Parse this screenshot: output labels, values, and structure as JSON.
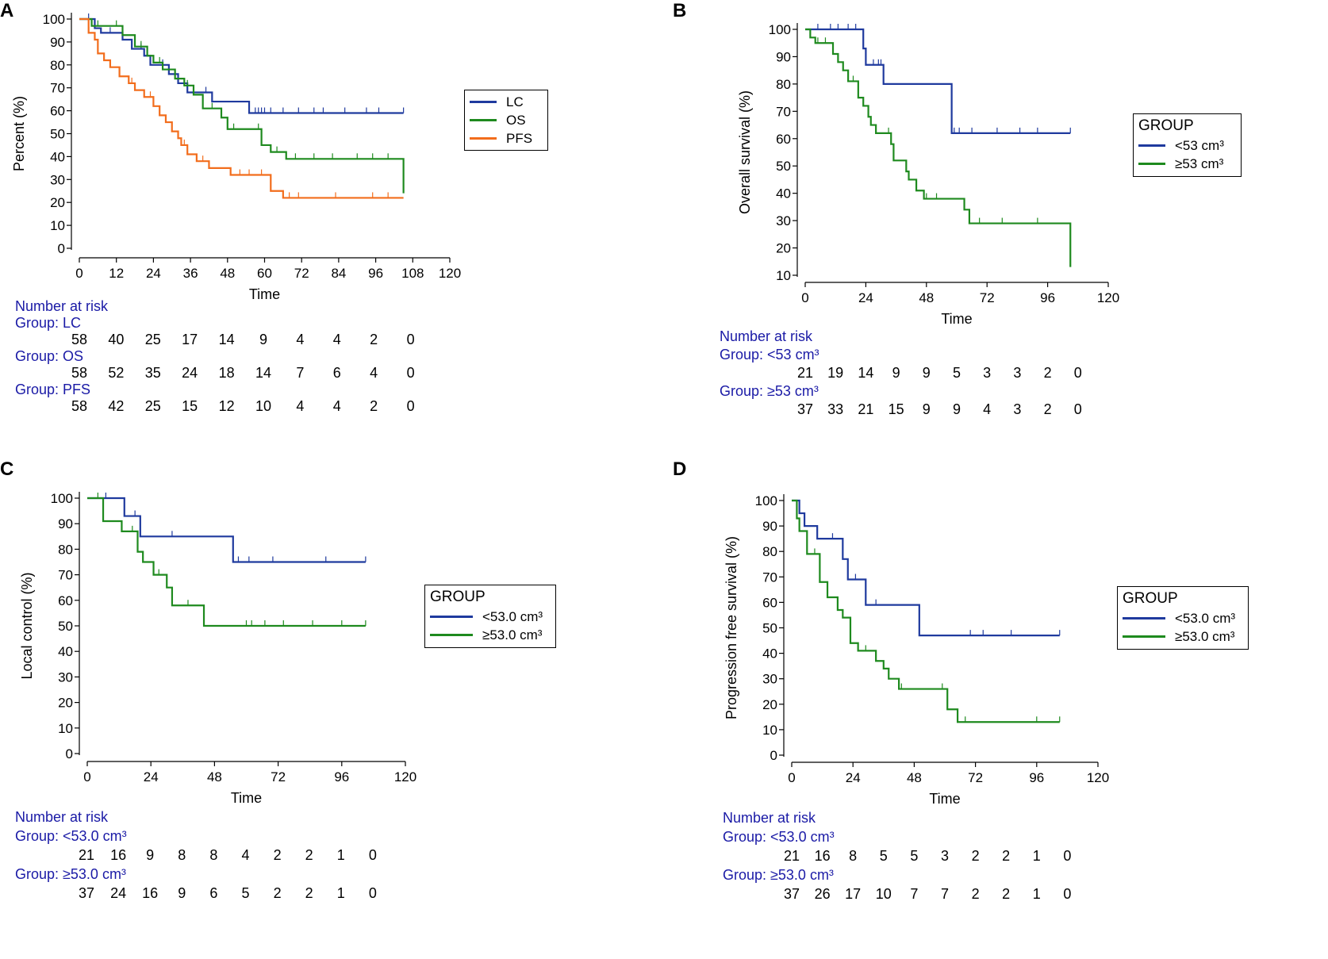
{
  "colors": {
    "blue": "#1f3a9e",
    "green": "#1e8a1e",
    "orange": "#f26d1c",
    "risk_text": "#1a1aa6"
  },
  "chart_data": [
    {
      "panel": "A",
      "type": "line",
      "step": true,
      "xlabel": "Time",
      "ylabel": "Percent (%)",
      "xlim": [
        0,
        120
      ],
      "ylim": [
        0,
        100
      ],
      "xticks": [
        "0",
        "12",
        "24",
        "36",
        "48",
        "60",
        "72",
        "84",
        "96",
        "108",
        "120"
      ],
      "yticks": [
        "0",
        "10",
        "20",
        "30",
        "40",
        "50",
        "60",
        "70",
        "80",
        "90",
        "100"
      ],
      "legend": {
        "title": "",
        "position": "right",
        "entries": [
          {
            "name": "LC",
            "color": "#1f3a9e"
          },
          {
            "name": "OS",
            "color": "#1e8a1e"
          },
          {
            "name": "PFS",
            "color": "#f26d1c"
          }
        ]
      },
      "series": [
        {
          "name": "LC",
          "color": "#1f3a9e",
          "x": [
            0,
            5,
            7,
            14,
            17,
            21,
            23,
            29,
            32,
            35,
            43,
            55,
            105
          ],
          "y": [
            100,
            96,
            94,
            91,
            87,
            84,
            80,
            76,
            72,
            68,
            64,
            59,
            59
          ],
          "censor": [
            3,
            10,
            20,
            27,
            37,
            41,
            57,
            58,
            59,
            60,
            62,
            66,
            71,
            76,
            79,
            86,
            93,
            97,
            105
          ]
        },
        {
          "name": "OS",
          "color": "#1e8a1e",
          "x": [
            0,
            4,
            14,
            18,
            22,
            24,
            27,
            31,
            34,
            37,
            40,
            46,
            48,
            59,
            62,
            67,
            105,
            105
          ],
          "y": [
            100,
            97,
            93,
            88,
            84,
            81,
            78,
            74,
            71,
            67,
            61,
            57,
            52,
            45,
            42,
            39,
            39,
            24
          ],
          "censor": [
            6,
            12,
            20,
            26,
            35,
            43,
            50,
            58,
            64,
            70,
            76,
            82,
            90,
            95,
            100
          ]
        },
        {
          "name": "PFS",
          "color": "#f26d1c",
          "x": [
            0,
            3,
            5,
            6,
            8,
            10,
            13,
            16,
            18,
            21,
            24,
            26,
            28,
            30,
            32,
            33,
            35,
            38,
            42,
            49,
            56,
            62,
            66,
            105
          ],
          "y": [
            100,
            94,
            91,
            85,
            82,
            79,
            75,
            72,
            69,
            66,
            62,
            58,
            55,
            51,
            48,
            45,
            41,
            38,
            35,
            32,
            32,
            25,
            22,
            22
          ],
          "censor": [
            17,
            23,
            34,
            40,
            52,
            55,
            59,
            68,
            71,
            83,
            95,
            100
          ]
        }
      ],
      "risk_table": {
        "title": "Number at risk",
        "times": [
          0,
          12,
          24,
          36,
          48,
          60,
          72,
          84,
          96,
          108
        ],
        "groups": [
          {
            "label": "Group: LC",
            "values": [
              "58",
              "40",
              "25",
              "17",
              "14",
              "9",
              "4",
              "4",
              "2",
              "0"
            ]
          },
          {
            "label": "Group: OS",
            "values": [
              "58",
              "52",
              "35",
              "24",
              "18",
              "14",
              "7",
              "6",
              "4",
              "0"
            ]
          },
          {
            "label": "Group: PFS",
            "values": [
              "58",
              "42",
              "25",
              "15",
              "12",
              "10",
              "4",
              "4",
              "2",
              "0"
            ]
          }
        ]
      }
    },
    {
      "panel": "B",
      "type": "line",
      "step": true,
      "xlabel": "Time",
      "ylabel": "Overall survival (%)",
      "xlim": [
        0,
        120
      ],
      "ylim": [
        10,
        100
      ],
      "xticks": [
        "0",
        "24",
        "48",
        "72",
        "96",
        "120"
      ],
      "yticks": [
        "10",
        "20",
        "30",
        "40",
        "50",
        "60",
        "70",
        "80",
        "90",
        "100"
      ],
      "legend": {
        "title": "GROUP",
        "position": "right",
        "entries": [
          {
            "name": "<53 cm³",
            "color": "#1f3a9e"
          },
          {
            "name": "≥53 cm³",
            "color": "#1e8a1e"
          }
        ]
      },
      "series": [
        {
          "name": "<53 cm³",
          "color": "#1f3a9e",
          "x": [
            0,
            23,
            24,
            31,
            58,
            105
          ],
          "y": [
            100,
            93,
            87,
            80,
            62,
            62
          ],
          "censor": [
            5,
            10,
            13,
            17,
            20,
            27,
            29,
            30,
            31,
            59,
            61,
            66,
            76,
            85,
            92,
            105
          ]
        },
        {
          "name": "≥53 cm³",
          "color": "#1e8a1e",
          "x": [
            0,
            2,
            4,
            11,
            13,
            15,
            17,
            21,
            23,
            25,
            26,
            28,
            34,
            35,
            40,
            41,
            44,
            47,
            52,
            57,
            63,
            65,
            105,
            105
          ],
          "y": [
            100,
            97,
            95,
            91,
            88,
            85,
            81,
            75,
            72,
            68,
            65,
            62,
            58,
            52,
            48,
            45,
            41,
            38,
            38,
            38,
            34,
            29,
            29,
            13
          ],
          "censor": [
            5,
            8,
            19,
            33,
            48,
            52,
            65,
            69,
            78,
            92
          ]
        }
      ],
      "risk_table": {
        "title": "Number at risk",
        "times": [
          0,
          12,
          24,
          36,
          48,
          60,
          72,
          84,
          96,
          108
        ],
        "groups": [
          {
            "label": "Group: <53 cm³",
            "values": [
              "21",
              "19",
              "14",
              "9",
              "9",
              "5",
              "3",
              "3",
              "2",
              "0"
            ]
          },
          {
            "label": "Group: ≥53 cm³",
            "values": [
              "37",
              "33",
              "21",
              "15",
              "9",
              "9",
              "4",
              "3",
              "2",
              "0"
            ]
          }
        ]
      }
    },
    {
      "panel": "C",
      "type": "line",
      "step": true,
      "xlabel": "Time",
      "ylabel": "Local control (%)",
      "xlim": [
        0,
        120
      ],
      "ylim": [
        0,
        100
      ],
      "xticks": [
        "0",
        "24",
        "48",
        "72",
        "96",
        "120"
      ],
      "yticks": [
        "0",
        "10",
        "20",
        "30",
        "40",
        "50",
        "60",
        "70",
        "80",
        "90",
        "100"
      ],
      "legend": {
        "title": "GROUP",
        "position": "right",
        "entries": [
          {
            "name": "<53.0 cm³",
            "color": "#1f3a9e"
          },
          {
            "name": "≥53.0 cm³",
            "color": "#1e8a1e"
          }
        ]
      },
      "series": [
        {
          "name": "<53.0 cm³",
          "color": "#1f3a9e",
          "x": [
            0,
            14,
            20,
            55,
            105
          ],
          "y": [
            100,
            93,
            85,
            75,
            75
          ],
          "censor": [
            7,
            18,
            32,
            57,
            61,
            70,
            90,
            105
          ]
        },
        {
          "name": "≥53.0 cm³",
          "color": "#1e8a1e",
          "x": [
            0,
            6,
            13,
            19,
            21,
            25,
            30,
            32,
            44,
            105
          ],
          "y": [
            100,
            91,
            87,
            79,
            75,
            70,
            65,
            58,
            50,
            50
          ],
          "censor": [
            4,
            17,
            27,
            38,
            60,
            62,
            67,
            74,
            85,
            96,
            105
          ]
        }
      ],
      "risk_table": {
        "title": "Number at risk",
        "times": [
          0,
          12,
          24,
          36,
          48,
          60,
          72,
          84,
          96,
          108
        ],
        "groups": [
          {
            "label": "Group: <53.0 cm³",
            "values": [
              "21",
              "16",
              "9",
              "8",
              "8",
              "4",
              "2",
              "2",
              "1",
              "0"
            ]
          },
          {
            "label": "Group: ≥53.0 cm³",
            "values": [
              "37",
              "24",
              "16",
              "9",
              "6",
              "5",
              "2",
              "2",
              "1",
              "0"
            ]
          }
        ]
      }
    },
    {
      "panel": "D",
      "type": "line",
      "step": true,
      "xlabel": "Time",
      "ylabel": "Progression  free survival (%)",
      "xlim": [
        0,
        120
      ],
      "ylim": [
        0,
        100
      ],
      "xticks": [
        "0",
        "24",
        "48",
        "72",
        "96",
        "120"
      ],
      "yticks": [
        "0",
        "10",
        "20",
        "30",
        "40",
        "50",
        "60",
        "70",
        "80",
        "90",
        "100"
      ],
      "legend": {
        "title": "GROUP",
        "position": "right",
        "entries": [
          {
            "name": "<53.0 cm³",
            "color": "#1f3a9e"
          },
          {
            "name": "≥53.0 cm³",
            "color": "#1e8a1e"
          }
        ]
      },
      "series": [
        {
          "name": "<53.0 cm³",
          "color": "#1f3a9e",
          "x": [
            0,
            3,
            5,
            10,
            20,
            22,
            29,
            50,
            105
          ],
          "y": [
            100,
            95,
            90,
            85,
            77,
            69,
            59,
            47,
            47
          ],
          "censor": [
            16,
            25,
            33,
            70,
            75,
            86,
            105
          ]
        },
        {
          "name": "≥53.0 cm³",
          "color": "#1e8a1e",
          "x": [
            0,
            2,
            3,
            6,
            11,
            14,
            18,
            20,
            23,
            26,
            33,
            36,
            38,
            42,
            61,
            65,
            105
          ],
          "y": [
            100,
            93,
            88,
            79,
            68,
            62,
            57,
            54,
            44,
            41,
            37,
            34,
            30,
            26,
            18,
            13,
            13
          ],
          "censor": [
            9,
            29,
            43,
            59,
            68,
            96,
            105
          ]
        }
      ],
      "risk_table": {
        "title": "Number at risk",
        "times": [
          0,
          12,
          24,
          36,
          48,
          60,
          72,
          84,
          96,
          108
        ],
        "groups": [
          {
            "label": "Group: <53.0 cm³",
            "values": [
              "21",
              "16",
              "8",
              "5",
              "5",
              "3",
              "2",
              "2",
              "1",
              "0"
            ]
          },
          {
            "label": "Group: ≥53.0 cm³",
            "values": [
              "37",
              "26",
              "17",
              "10",
              "7",
              "7",
              "2",
              "2",
              "1",
              "0"
            ]
          }
        ]
      }
    }
  ]
}
